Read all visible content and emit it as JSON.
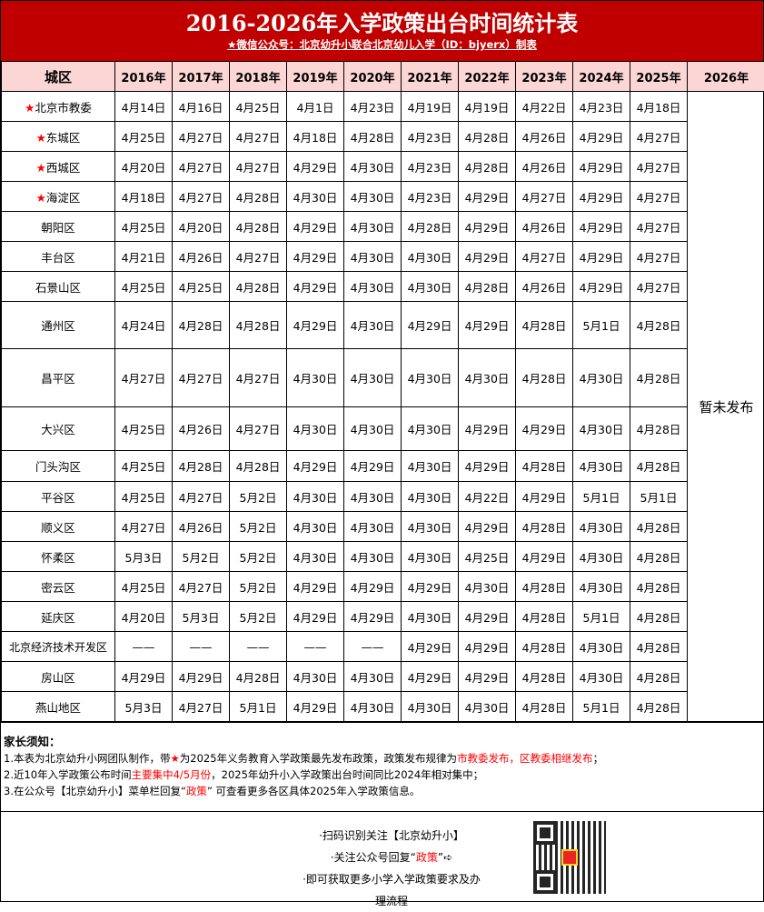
{
  "title": "2016-2026年入学政策出台时间统计表",
  "subtitle": "★微信公众号：北京幼升小联合北京幼儿入学（ID：bjyerx）制表",
  "headers": [
    "城区",
    "2016年",
    "2017年",
    "2018年",
    "2019年",
    "2020年",
    "2021年",
    "2022年",
    "2023年",
    "2024年",
    "2025年",
    "2026年"
  ],
  "col_2026_value": "暂未发布",
  "colors": {
    "accent": "#c00000",
    "header_bg": "#fcd5d5",
    "highlight": "#ff0000"
  },
  "rows": [
    {
      "name": "北京市教委",
      "star": true,
      "values": [
        "4月14日",
        "4月16日",
        "4月25日",
        "4月1日",
        "4月23日",
        "4月19日",
        "4月19日",
        "4月22日",
        "4月23日",
        "4月18日"
      ]
    },
    {
      "name": "东城区",
      "star": true,
      "values": [
        "4月25日",
        "4月27日",
        "4月27日",
        "4月18日",
        "4月28日",
        "4月23日",
        "4月28日",
        "4月26日",
        "4月29日",
        "4月27日"
      ]
    },
    {
      "name": "西城区",
      "star": true,
      "values": [
        "4月20日",
        "4月27日",
        "4月27日",
        "4月29日",
        "4月30日",
        "4月23日",
        "4月28日",
        "4月26日",
        "4月29日",
        "4月27日"
      ]
    },
    {
      "name": "海淀区",
      "star": true,
      "values": [
        "4月18日",
        "4月27日",
        "4月28日",
        "4月30日",
        "4月30日",
        "4月23日",
        "4月29日",
        "4月27日",
        "4月29日",
        "4月27日"
      ]
    },
    {
      "name": "朝阳区",
      "star": false,
      "values": [
        "4月25日",
        "4月20日",
        "4月28日",
        "4月29日",
        "4月30日",
        "4月28日",
        "4月29日",
        "4月26日",
        "4月29日",
        "4月27日"
      ]
    },
    {
      "name": "丰台区",
      "star": false,
      "values": [
        "4月21日",
        "4月26日",
        "4月27日",
        "4月29日",
        "4月30日",
        "4月30日",
        "4月29日",
        "4月27日",
        "4月29日",
        "4月27日"
      ]
    },
    {
      "name": "石景山区",
      "star": false,
      "values": [
        "4月25日",
        "4月25日",
        "4月28日",
        "4月29日",
        "4月30日",
        "4月30日",
        "4月28日",
        "4月26日",
        "4月29日",
        "4月27日"
      ]
    },
    {
      "name": "通州区",
      "star": false,
      "values": [
        "4月24日",
        "4月28日",
        "4月28日",
        "4月29日",
        "4月30日",
        "4月29日",
        "4月29日",
        "4月28日",
        "5月1日",
        "4月28日"
      ]
    },
    {
      "name": "昌平区",
      "star": false,
      "values": [
        "4月27日",
        "4月27日",
        "4月27日",
        "4月30日",
        "4月30日",
        "4月30日",
        "4月30日",
        "4月28日",
        "4月30日",
        "4月28日"
      ]
    },
    {
      "name": "大兴区",
      "star": false,
      "values": [
        "4月25日",
        "4月26日",
        "4月27日",
        "4月30日",
        "4月30日",
        "4月30日",
        "4月29日",
        "4月29日",
        "4月30日",
        "4月28日"
      ]
    },
    {
      "name": "门头沟区",
      "star": false,
      "values": [
        "4月25日",
        "4月28日",
        "4月28日",
        "4月29日",
        "4月29日",
        "4月30日",
        "4月29日",
        "4月28日",
        "4月30日",
        "4月28日"
      ]
    },
    {
      "name": "平谷区",
      "star": false,
      "values": [
        "4月25日",
        "4月27日",
        "5月2日",
        "4月30日",
        "4月30日",
        "4月30日",
        "4月22日",
        "4月29日",
        "5月1日",
        "5月1日"
      ]
    },
    {
      "name": "顺义区",
      "star": false,
      "values": [
        "4月27日",
        "4月26日",
        "5月2日",
        "4月30日",
        "4月30日",
        "4月30日",
        "4月29日",
        "4月28日",
        "4月30日",
        "4月28日"
      ]
    },
    {
      "name": "怀柔区",
      "star": false,
      "values": [
        "5月3日",
        "5月2日",
        "5月2日",
        "4月30日",
        "4月30日",
        "4月30日",
        "4月25日",
        "4月29日",
        "4月30日",
        "4月28日"
      ]
    },
    {
      "name": "密云区",
      "star": false,
      "values": [
        "4月25日",
        "4月27日",
        "5月2日",
        "4月29日",
        "4月29日",
        "4月29日",
        "4月30日",
        "4月28日",
        "4月30日",
        "4月28日"
      ]
    },
    {
      "name": "延庆区",
      "star": false,
      "values": [
        "4月20日",
        "5月3日",
        "5月2日",
        "4月29日",
        "4月29日",
        "4月30日",
        "4月29日",
        "4月28日",
        "5月1日",
        "4月28日"
      ]
    },
    {
      "name": "北京经济技术开发区",
      "star": false,
      "values": [
        "——",
        "——",
        "——",
        "——",
        "——",
        "4月29日",
        "4月29日",
        "4月28日",
        "4月30日",
        "4月28日"
      ]
    },
    {
      "name": "房山区",
      "star": false,
      "values": [
        "4月29日",
        "4月29日",
        "4月28日",
        "4月30日",
        "4月30日",
        "4月29日",
        "4月29日",
        "4月28日",
        "4月30日",
        "4月28日"
      ]
    },
    {
      "name": "燕山地区",
      "star": false,
      "values": [
        "5月3日",
        "4月27日",
        "5月1日",
        "4月29日",
        "4月30日",
        "4月30日",
        "4月30日",
        "4月28日",
        "5月1日",
        "4月28日"
      ]
    }
  ],
  "notes": {
    "heading": "家长须知：",
    "n1a": "1.本表为北京幼升小网团队制作，带",
    "n1star": "★",
    "n1b": "为2025年义务教育入学政策最先发布政策，政策发布规律为",
    "n1red": "市教委发布，区教委相继发布",
    "n1c": "；",
    "n2a": "2.近10年入学政策公布时间",
    "n2red": "主要集中4/5月份",
    "n2b": "，2025年幼升小入学政策出台时间同比2024年相对集中；",
    "n3a": "3.在公众号【北京幼升小】菜单栏回复“",
    "n3red": "政策",
    "n3b": "” 可查看更多各区具体2025年入学政策信息。"
  },
  "footer": {
    "line1": "·扫码识别关注【北京幼升小】",
    "line2a": "·关注公众号回复“",
    "line2red": "政策",
    "line2b": "”➪",
    "line3": "·即可获取更多小学入学政策要求及办理流程"
  }
}
